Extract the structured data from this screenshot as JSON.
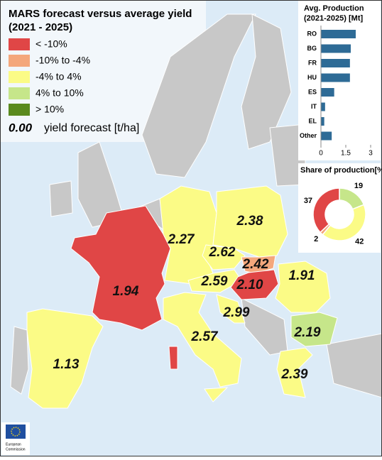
{
  "title": [
    "MARS forecast versus average yield",
    "(2021 - 2025)"
  ],
  "legend": [
    {
      "label": "< -10%",
      "color": "#e04646"
    },
    {
      "label": "-10% to -4%",
      "color": "#f4a77c"
    },
    {
      "label": "-4% to 4%",
      "color": "#fbfb86"
    },
    {
      "label": "4% to 10%",
      "color": "#c6e68a"
    },
    {
      "label": "> 10%",
      "color": "#5a8a1e"
    }
  ],
  "value_legend": {
    "sample": "0.00",
    "label": "yield forecast [t/ha]"
  },
  "map_labels": [
    "2.38",
    "2.27",
    "2.62",
    "2.42",
    "1.94",
    "2.59",
    "2.10",
    "1.91",
    "2.99",
    "2.19",
    "2.57",
    "1.13",
    "2.39"
  ],
  "footer": [
    "European",
    "Commission"
  ],
  "chart_data": [
    {
      "type": "bar",
      "title": [
        "Avg. Production",
        "(2021-2025) [Mt]"
      ],
      "categories": [
        "RO",
        "BG",
        "FR",
        "HU",
        "ES",
        "IT",
        "EL",
        "Other"
      ],
      "values": [
        2.1,
        1.8,
        1.75,
        1.75,
        0.8,
        0.25,
        0.2,
        0.65
      ],
      "color": "#2e6b96",
      "xlim": [
        0,
        3
      ],
      "xticks": [
        0,
        1.5,
        3
      ]
    },
    {
      "type": "pie",
      "title": "Share of production[%]",
      "values": [
        19,
        42,
        2,
        37
      ],
      "colors": [
        "#c6e68a",
        "#fbfb86",
        "#f4a77c",
        "#e04646"
      ]
    }
  ]
}
